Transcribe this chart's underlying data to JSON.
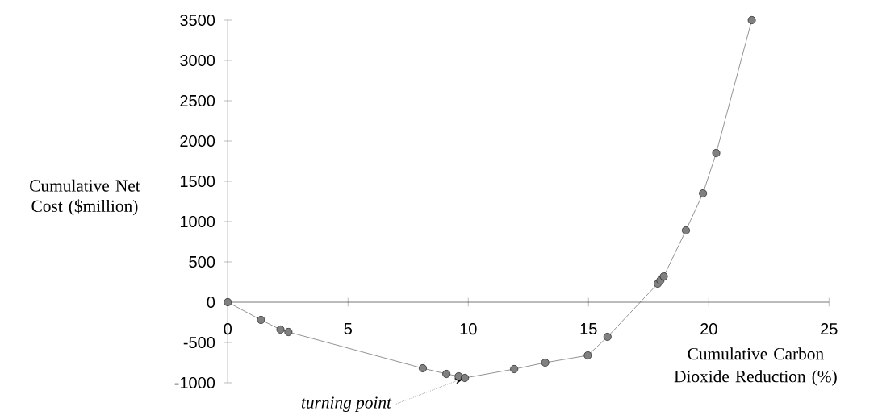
{
  "chart_data": {
    "type": "line",
    "xlabel": "Cumulative Carbon Dioxide Reduction (%)",
    "ylabel": "Cumulative Net Cost ($million)",
    "x": [
      0,
      1.38,
      2.19,
      2.52,
      8.11,
      9.09,
      9.6,
      9.86,
      11.91,
      13.2,
      14.97,
      15.79,
      17.88,
      17.99,
      18.13,
      19.05,
      19.76,
      20.31,
      21.79
    ],
    "values": [
      0,
      -220,
      -340,
      -370,
      -820,
      -890,
      -920,
      -940,
      -830,
      -750,
      -660,
      -430,
      230,
      270,
      320,
      890,
      1350,
      1850,
      3500
    ],
    "color": "#333333",
    "marker": "circle",
    "xlim": [
      0,
      25
    ],
    "ylim": [
      -1000,
      3500
    ],
    "xticks": [
      0,
      5,
      10,
      15,
      20,
      25
    ],
    "yticks": [
      -1000,
      -500,
      0,
      500,
      1000,
      1500,
      2000,
      2500,
      3000,
      3500
    ],
    "annotations": [
      {
        "text": "turning point",
        "x": 9.86,
        "y": -937
      }
    ]
  }
}
